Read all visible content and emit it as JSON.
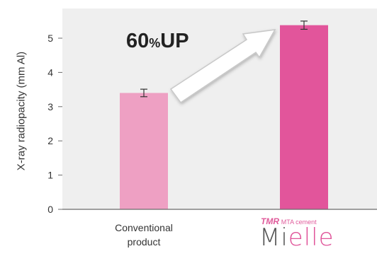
{
  "chart_data": {
    "type": "bar",
    "ylabel": "X-ray radiopacity (mm Al)",
    "ylim": [
      0,
      5.8
    ],
    "yticks": [
      0,
      1,
      2,
      3,
      4,
      5
    ],
    "grid": false,
    "categories": [
      "Conventional product",
      "TMR MTA cement Mielle"
    ],
    "values": [
      3.4,
      5.38
    ],
    "error": [
      0.11,
      0.12
    ],
    "bar_colors": [
      "#eea0c3",
      "#e2559b"
    ],
    "annotation": {
      "number": "60",
      "percent": "%",
      "word": "UP"
    }
  },
  "labels": {
    "category1_line1": "Conventional",
    "category1_line2": "product",
    "brand_prefix": "TMR",
    "brand_sub": "MTA cement",
    "brand_name_a": "Mi",
    "brand_name_b": "elle"
  },
  "colors": {
    "plot_bg": "#efefef",
    "axis": "#6b6b6b",
    "arrow_fill": "#ffffff",
    "arrow_stroke": "#c8c8c8"
  }
}
